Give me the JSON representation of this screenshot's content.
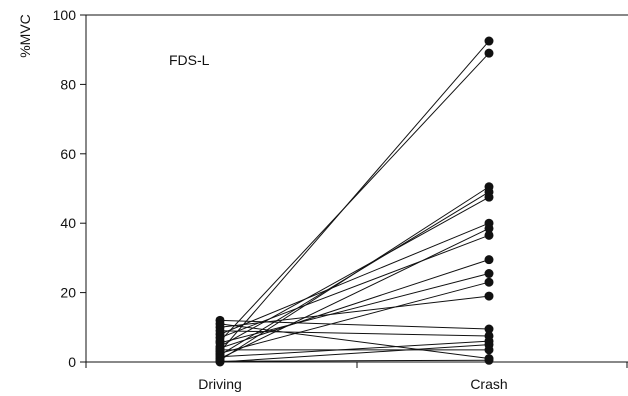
{
  "chart_data": {
    "type": "line",
    "ylabel": "%MVC",
    "annotation": "FDS-L",
    "ylim": [
      0,
      100
    ],
    "y_ticks": [
      0,
      20,
      40,
      60,
      80,
      100
    ],
    "categories": [
      "Driving",
      "Crash"
    ],
    "grid": false,
    "legend": "none",
    "colors": {
      "line": "#111111",
      "point": "#111111",
      "axis": "#111111"
    },
    "series": [
      {
        "values": [
          3,
          92.5
        ]
      },
      {
        "values": [
          6,
          89
        ]
      },
      {
        "values": [
          0.5,
          50.5
        ]
      },
      {
        "values": [
          2,
          49
        ]
      },
      {
        "values": [
          4.5,
          47.5
        ]
      },
      {
        "values": [
          8,
          40
        ]
      },
      {
        "values": [
          1,
          38.5
        ]
      },
      {
        "values": [
          7,
          36.5
        ]
      },
      {
        "values": [
          4,
          29.5
        ]
      },
      {
        "values": [
          5.5,
          25.5
        ]
      },
      {
        "values": [
          2.5,
          23
        ]
      },
      {
        "values": [
          10,
          19
        ]
      },
      {
        "values": [
          12,
          9.5
        ]
      },
      {
        "values": [
          9,
          7.5
        ]
      },
      {
        "values": [
          1.5,
          6
        ]
      },
      {
        "values": [
          0,
          5
        ]
      },
      {
        "values": [
          3.5,
          3.5
        ]
      },
      {
        "values": [
          11,
          1
        ]
      },
      {
        "values": [
          0.2,
          0.5
        ]
      }
    ]
  }
}
